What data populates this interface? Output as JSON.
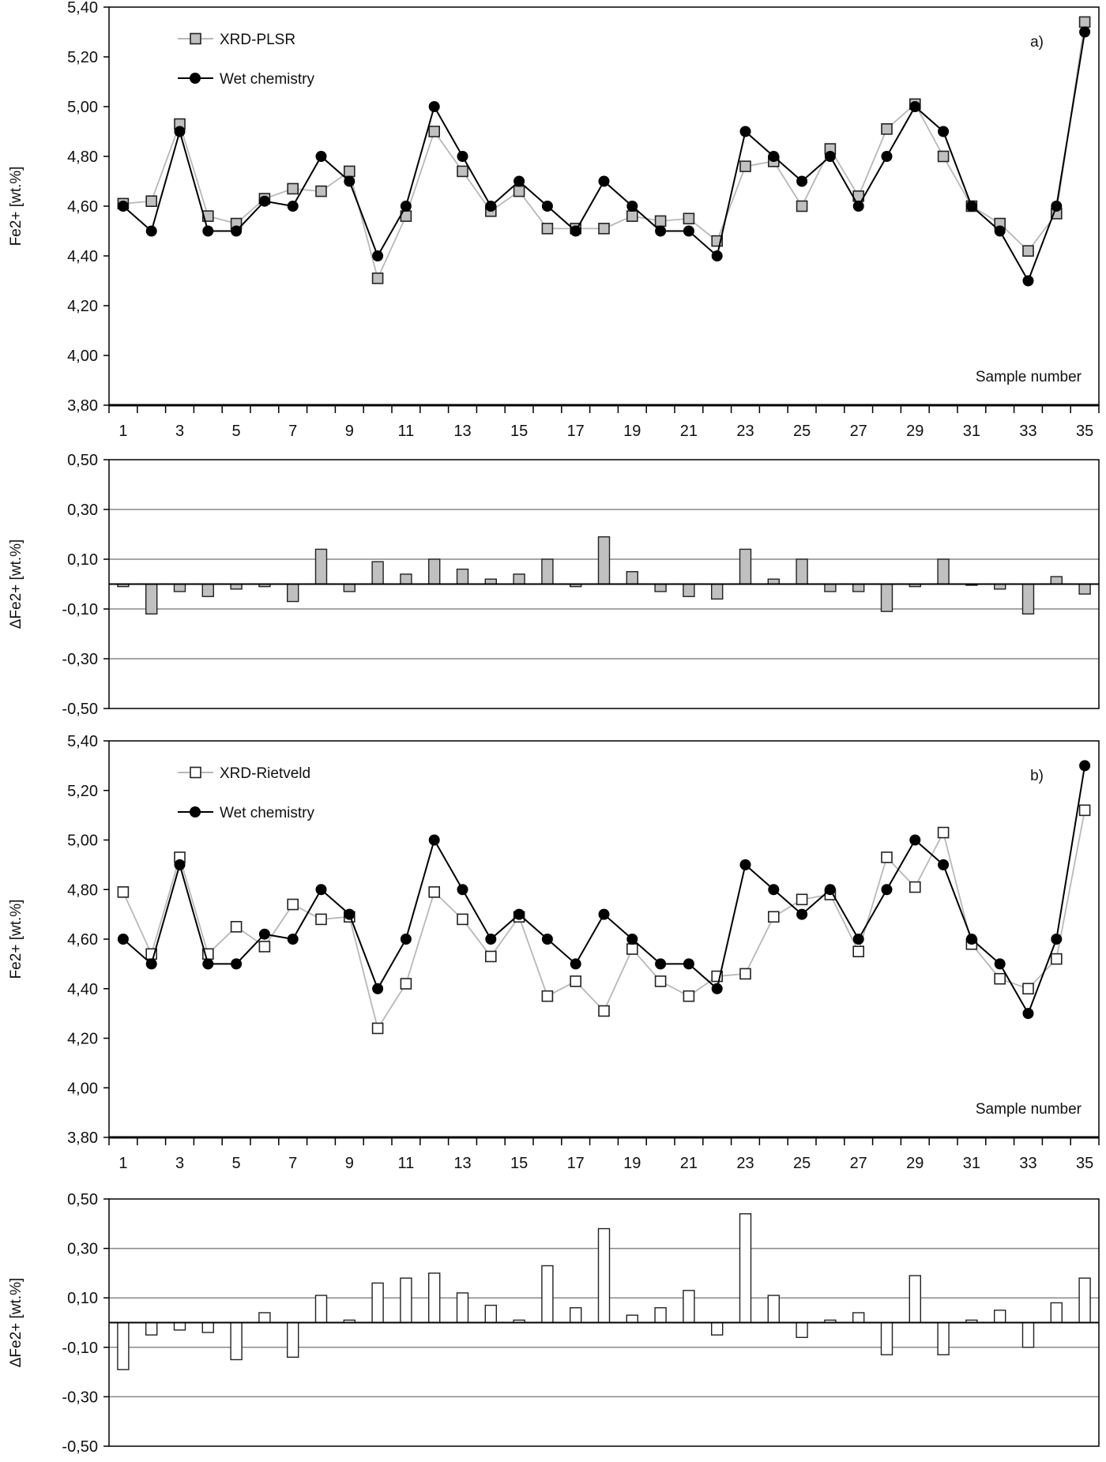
{
  "chart_data": [
    {
      "type": "line",
      "panel_label": "a)",
      "xlabel": "Sample number",
      "ylabel": "Fe2+ [wt.%]",
      "ylim": [
        3.8,
        5.4
      ],
      "yticks": [
        "3,80",
        "4,00",
        "4,20",
        "4,40",
        "4,60",
        "4,80",
        "5,00",
        "5,20",
        "5,40"
      ],
      "xticks": [
        "1",
        "3",
        "5",
        "7",
        "9",
        "11",
        "13",
        "15",
        "17",
        "19",
        "21",
        "23",
        "25",
        "27",
        "29",
        "31",
        "33",
        "35"
      ],
      "x": [
        1,
        2,
        3,
        4,
        5,
        6,
        7,
        8,
        9,
        10,
        11,
        12,
        13,
        14,
        15,
        16,
        17,
        18,
        19,
        20,
        21,
        22,
        23,
        24,
        25,
        26,
        27,
        28,
        29,
        30,
        31,
        32,
        33,
        34,
        35
      ],
      "series": [
        {
          "name": "XRD-PLSR",
          "marker": "square",
          "fill": "#c0c0c0",
          "line_color": "#b8b8b8",
          "values": [
            4.61,
            4.62,
            4.93,
            4.56,
            4.53,
            4.63,
            4.67,
            4.66,
            4.74,
            4.31,
            4.56,
            4.9,
            4.74,
            4.58,
            4.66,
            4.51,
            4.51,
            4.51,
            4.56,
            4.54,
            4.55,
            4.46,
            4.76,
            4.78,
            4.6,
            4.83,
            4.64,
            4.91,
            5.01,
            4.8,
            4.6,
            4.53,
            4.42,
            4.57,
            5.34
          ]
        },
        {
          "name": "Wet chemistry",
          "marker": "circle",
          "fill": "#000000",
          "line_color": "#000000",
          "values": [
            4.6,
            4.5,
            4.9,
            4.5,
            4.5,
            4.62,
            4.6,
            4.8,
            4.7,
            4.4,
            4.6,
            5.0,
            4.8,
            4.6,
            4.7,
            4.6,
            4.5,
            4.7,
            4.6,
            4.5,
            4.5,
            4.4,
            4.9,
            4.8,
            4.7,
            4.8,
            4.6,
            4.8,
            5.0,
            4.9,
            4.6,
            4.5,
            4.3,
            4.6,
            5.3
          ]
        }
      ]
    },
    {
      "type": "bar",
      "ylabel": "ΔFe2+ [wt.%]",
      "ylim": [
        -0.5,
        0.5
      ],
      "yticks": [
        "-0,50",
        "-0,30",
        "-0,10",
        "0,10",
        "0,30",
        "0,50"
      ],
      "grid": true,
      "bar_fill": "#c0c0c0",
      "values": [
        -0.01,
        -0.12,
        -0.03,
        -0.05,
        -0.02,
        -0.01,
        -0.07,
        0.14,
        -0.03,
        0.09,
        0.04,
        0.1,
        0.06,
        0.02,
        0.04,
        0.1,
        -0.01,
        0.19,
        0.05,
        -0.03,
        -0.05,
        -0.06,
        0.14,
        0.02,
        0.1,
        -0.03,
        -0.03,
        -0.11,
        -0.01,
        0.1,
        0.0,
        -0.02,
        -0.12,
        0.03,
        -0.04
      ]
    },
    {
      "type": "line",
      "panel_label": "b)",
      "xlabel": "Sample number",
      "ylabel": "Fe2+ [wt.%]",
      "ylim": [
        3.8,
        5.4
      ],
      "yticks": [
        "3,80",
        "4,00",
        "4,20",
        "4,40",
        "4,60",
        "4,80",
        "5,00",
        "5,20",
        "5,40"
      ],
      "xticks": [
        "1",
        "3",
        "5",
        "7",
        "9",
        "11",
        "13",
        "15",
        "17",
        "19",
        "21",
        "23",
        "25",
        "27",
        "29",
        "31",
        "33",
        "35"
      ],
      "x": [
        1,
        2,
        3,
        4,
        5,
        6,
        7,
        8,
        9,
        10,
        11,
        12,
        13,
        14,
        15,
        16,
        17,
        18,
        19,
        20,
        21,
        22,
        23,
        24,
        25,
        26,
        27,
        28,
        29,
        30,
        31,
        32,
        33,
        34,
        35
      ],
      "series": [
        {
          "name": "XRD-Rietveld",
          "marker": "square",
          "fill": "#ffffff",
          "line_color": "#b8b8b8",
          "values": [
            4.79,
            4.54,
            4.93,
            4.54,
            4.65,
            4.57,
            4.74,
            4.68,
            4.69,
            4.24,
            4.42,
            4.79,
            4.68,
            4.53,
            4.69,
            4.37,
            4.43,
            4.31,
            4.56,
            4.43,
            4.37,
            4.45,
            4.46,
            4.69,
            4.76,
            4.78,
            4.55,
            4.93,
            4.81,
            5.03,
            4.58,
            4.44,
            4.4,
            4.52,
            5.12
          ]
        },
        {
          "name": "Wet chemistry",
          "marker": "circle",
          "fill": "#000000",
          "line_color": "#000000",
          "values": [
            4.6,
            4.5,
            4.9,
            4.5,
            4.5,
            4.62,
            4.6,
            4.8,
            4.7,
            4.4,
            4.6,
            5.0,
            4.8,
            4.6,
            4.7,
            4.6,
            4.5,
            4.7,
            4.6,
            4.5,
            4.5,
            4.4,
            4.9,
            4.8,
            4.7,
            4.8,
            4.6,
            4.8,
            5.0,
            4.9,
            4.6,
            4.5,
            4.3,
            4.6,
            5.3
          ]
        }
      ]
    },
    {
      "type": "bar",
      "ylabel": "ΔFe2+ [wt.%]",
      "ylim": [
        -0.5,
        0.5
      ],
      "yticks": [
        "-0,50",
        "-0,30",
        "-0,10",
        "0,10",
        "0,30",
        "0,50"
      ],
      "grid": true,
      "bar_fill": "#ffffff",
      "values": [
        -0.19,
        -0.05,
        -0.03,
        -0.04,
        -0.15,
        0.04,
        -0.14,
        0.11,
        0.01,
        0.16,
        0.18,
        0.2,
        0.12,
        0.07,
        0.01,
        0.23,
        0.06,
        0.38,
        0.03,
        0.06,
        0.13,
        -0.05,
        0.44,
        0.11,
        -0.06,
        0.01,
        0.04,
        -0.13,
        0.19,
        -0.13,
        0.01,
        0.05,
        -0.1,
        0.08,
        0.18
      ]
    }
  ]
}
